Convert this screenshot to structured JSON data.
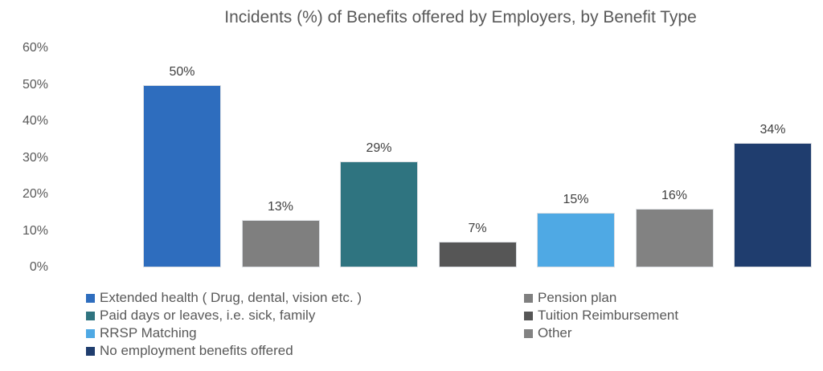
{
  "chart_data": {
    "type": "bar",
    "title": "Incidents (%) of Benefits offered by Employers, by Benefit Type",
    "xlabel": "",
    "ylabel": "",
    "ylim": [
      0,
      60
    ],
    "grid": false,
    "legend_position": "bottom",
    "yticks": [
      {
        "value": 60,
        "label": "60%"
      },
      {
        "value": 50,
        "label": "50%"
      },
      {
        "value": 40,
        "label": "40%"
      },
      {
        "value": 30,
        "label": "30%"
      },
      {
        "value": 20,
        "label": "20%"
      },
      {
        "value": 10,
        "label": "10%"
      },
      {
        "value": 0,
        "label": "0%"
      }
    ],
    "categories": [
      "Extended health ( Drug, dental, vision etc. )",
      "Pension plan",
      "Paid days or leaves, i.e. sick, family",
      "Tuition Reimbursement",
      "RRSP Matching",
      "Other",
      "No employment benefits offered"
    ],
    "values": [
      50,
      13,
      29,
      7,
      15,
      16,
      34
    ],
    "data_labels": [
      "50%",
      "13%",
      "29%",
      "7%",
      "15%",
      "16%",
      "34%"
    ],
    "colors": [
      "#2E6DBE",
      "#7F7F7F",
      "#2F7480",
      "#565656",
      "#4FA9E4",
      "#828282",
      "#1F3D6E"
    ],
    "legend_columns": {
      "left": [
        {
          "label": "Extended health ( Drug, dental, vision etc. )",
          "color": "#2E6DBE"
        },
        {
          "label": "Paid days or leaves, i.e. sick, family",
          "color": "#2F7480"
        },
        {
          "label": "RRSP Matching",
          "color": "#4FA9E4"
        },
        {
          "label": "No employment benefits offered",
          "color": "#1F3D6E"
        }
      ],
      "right": [
        {
          "label": "Pension plan",
          "color": "#7F7F7F"
        },
        {
          "label": "Tuition Reimbursement",
          "color": "#565656"
        },
        {
          "label": "Other",
          "color": "#828282"
        }
      ]
    }
  }
}
